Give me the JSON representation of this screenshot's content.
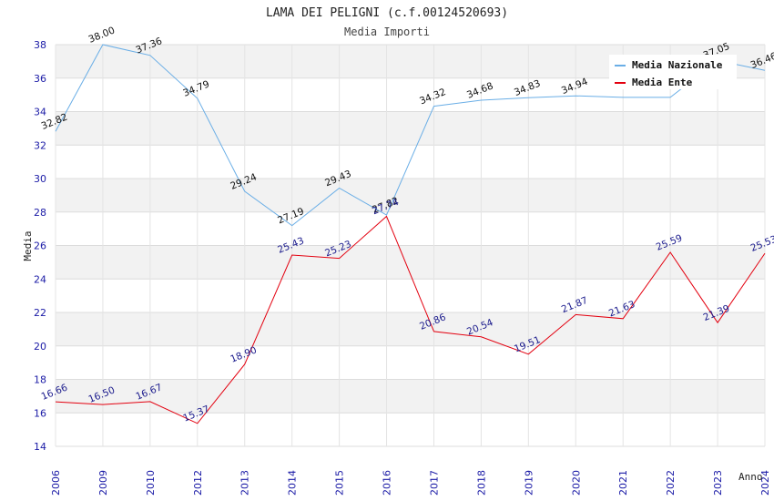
{
  "chart_data": {
    "type": "line",
    "title": "LAMA DEI PELIGNI (c.f.00124520693)",
    "subtitle": "Media Importi",
    "xlabel": "Anno",
    "ylabel": "Media",
    "ylim": [
      14,
      38
    ],
    "yticks": [
      "14",
      "16",
      "18",
      "20",
      "22",
      "24",
      "26",
      "28",
      "30",
      "32",
      "34",
      "36",
      "38"
    ],
    "categories": [
      "2006",
      "2009",
      "2010",
      "2012",
      "2013",
      "2014",
      "2015",
      "2016",
      "2017",
      "2018",
      "2019",
      "2020",
      "2021",
      "2022",
      "2023",
      "2024"
    ],
    "legend_position": "top-right",
    "series": [
      {
        "name": "Media Nazionale",
        "color": "#6aaee6",
        "values": [
          32.82,
          38.0,
          37.36,
          34.79,
          29.24,
          27.19,
          29.43,
          27.82,
          34.32,
          34.68,
          34.83,
          34.94,
          34.85,
          34.85,
          37.05,
          36.46
        ],
        "labels": [
          "32.82",
          "38.00",
          "37.36",
          "34.79",
          "29.24",
          "27.19",
          "29.43",
          "27.82",
          "34.32",
          "34.68",
          "34.83",
          "34.94",
          "",
          "",
          "37.05",
          "36.46"
        ]
      },
      {
        "name": "Media Ente",
        "color": "#e3000f",
        "values": [
          16.66,
          16.5,
          16.67,
          15.37,
          18.9,
          25.43,
          25.23,
          27.74,
          20.86,
          20.54,
          19.51,
          21.87,
          21.63,
          25.59,
          21.39,
          25.53
        ],
        "labels": [
          "16.66",
          "16.50",
          "16.67",
          "15.37",
          "18.90",
          "25.43",
          "25.23",
          "27.74",
          "20.86",
          "20.54",
          "19.51",
          "21.87",
          "21.63",
          "25.59",
          "21.39",
          "25.53"
        ]
      }
    ]
  }
}
